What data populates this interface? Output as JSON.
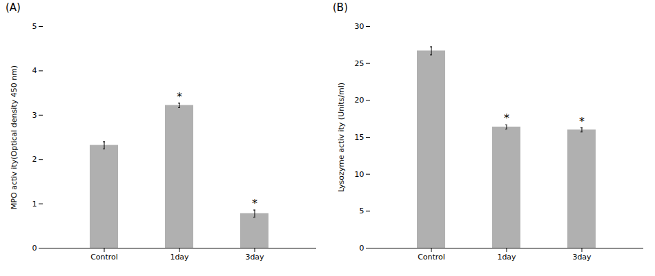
{
  "chart_data": [
    {
      "type": "bar",
      "title": "(A)",
      "categories": [
        "Control",
        "1day",
        "3day"
      ],
      "values": [
        2.32,
        3.22,
        0.78
      ],
      "errors": [
        0.08,
        0.05,
        0.08
      ],
      "color": "#b0b0b0",
      "ylabel": "MPO activ ity(Optical density 450 nm)",
      "ylim": [
        0,
        5
      ],
      "yticks": [
        0,
        1,
        2,
        3,
        4,
        5
      ],
      "annotations": [
        {
          "text": "*",
          "x": "1day",
          "y": 3.32
        },
        {
          "text": "*",
          "x": "3day",
          "y": 0.92
        }
      ],
      "grid": false
    },
    {
      "type": "bar",
      "title": "(B)",
      "categories": [
        "Control",
        "1day",
        "3day"
      ],
      "values": [
        26.7,
        16.4,
        16.0
      ],
      "errors": [
        0.55,
        0.28,
        0.28
      ],
      "color": "#b0b0b0",
      "ylabel": "Lysozyme activ ity (Units/ml)",
      "ylim": [
        0,
        30
      ],
      "yticks": [
        0,
        5,
        10,
        15,
        20,
        25,
        30
      ],
      "annotations": [
        {
          "text": "*",
          "x": "1day",
          "y": 17.0
        },
        {
          "text": "*",
          "x": "3day",
          "y": 16.6
        }
      ],
      "grid": false
    }
  ]
}
